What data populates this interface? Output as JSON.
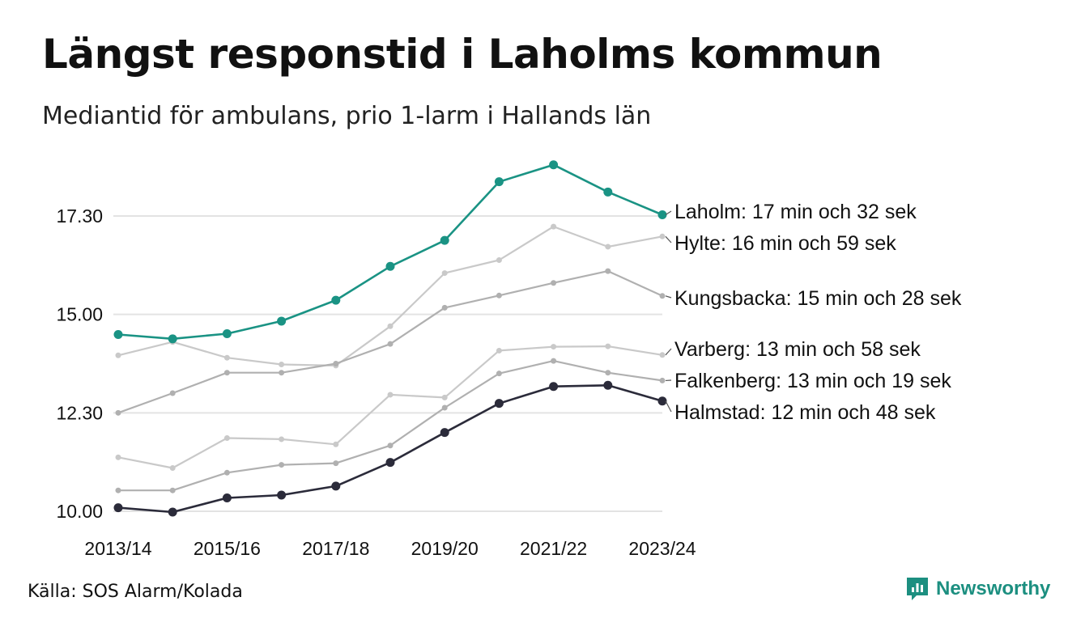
{
  "title": "Längst responstid i Laholms kommun",
  "subtitle": "Mediantid för ambulans, prio 1-larm i Hallands län",
  "source": "Källa: SOS Alarm/Kolada",
  "brand": "Newsworthy",
  "colors": {
    "highlight": "#1a9384",
    "dark": "#2b2b3a",
    "light": "#c9c9c9",
    "mid": "#b0b0b0",
    "grid": "#e3e3e3"
  },
  "chart_data": {
    "type": "line",
    "title": "Längst responstid i Laholms kommun",
    "subtitle": "Mediantid för ambulans, prio 1-larm i Hallands län",
    "xlabel": "",
    "ylabel": "",
    "x": [
      "2013/14",
      "2014/15",
      "2015/16",
      "2016/17",
      "2017/18",
      "2018/19",
      "2019/20",
      "2020/21",
      "2021/22",
      "2022/23",
      "2023/24"
    ],
    "x_tick_labels": [
      "2013/14",
      "2015/16",
      "2017/18",
      "2019/20",
      "2021/22",
      "2023/24"
    ],
    "y_ticks": [
      10.0,
      12.5,
      15.0,
      17.5
    ],
    "y_tick_labels": [
      "10.00",
      "12.30",
      "15.00",
      "17.30"
    ],
    "ylim": [
      10.0,
      19.5
    ],
    "grid": true,
    "series": [
      {
        "name": "Hylte",
        "label": "Hylte: 16 min och 59 sek",
        "color": "#c9c9c9",
        "values": [
          13.96,
          14.3,
          13.9,
          13.73,
          13.7,
          14.7,
          16.05,
          16.38,
          17.23,
          16.72,
          16.98
        ]
      },
      {
        "name": "Kungsbacka",
        "label": "Kungsbacka: 15 min och 28 sek",
        "color": "#b0b0b0",
        "values": [
          12.5,
          13.0,
          13.52,
          13.52,
          13.75,
          14.25,
          15.17,
          15.48,
          15.8,
          16.1,
          15.47
        ]
      },
      {
        "name": "Varberg",
        "label": "Varberg: 13 min och 58 sek",
        "color": "#c9c9c9",
        "values": [
          11.37,
          11.1,
          11.86,
          11.83,
          11.7,
          12.96,
          12.89,
          14.08,
          14.18,
          14.19,
          13.97
        ]
      },
      {
        "name": "Falkenberg",
        "label": "Falkenberg: 13 min och 19 sek",
        "color": "#b0b0b0",
        "values": [
          10.53,
          10.53,
          10.98,
          11.18,
          11.22,
          11.67,
          12.63,
          13.5,
          13.82,
          13.52,
          13.32
        ]
      },
      {
        "name": "Halmstad",
        "label": "Halmstad: 12 min och 48 sek",
        "color": "#2b2b3a",
        "values": [
          10.09,
          9.98,
          10.34,
          10.41,
          10.64,
          11.24,
          12.0,
          12.74,
          13.17,
          13.2,
          12.8
        ]
      },
      {
        "name": "Laholm",
        "label": "Laholm: 17 min och 32 sek",
        "color": "#1a9384",
        "values": [
          14.49,
          14.38,
          14.51,
          14.83,
          15.36,
          16.22,
          16.88,
          18.37,
          18.8,
          18.11,
          17.53
        ]
      }
    ]
  }
}
